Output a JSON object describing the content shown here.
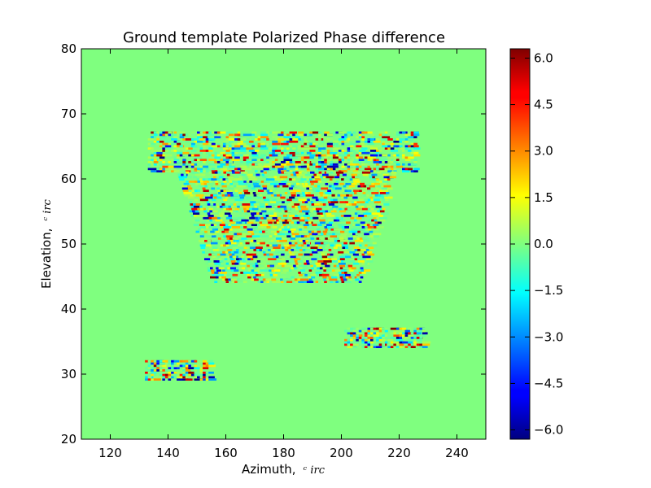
{
  "chart_data": {
    "type": "heatmap",
    "title": "Ground template Polarized Phase difference",
    "xlabel": "Azimuth,",
    "xlabel_unit": "ᶜ irc",
    "ylabel": "Elevation,",
    "ylabel_unit": "ᶜ irc",
    "xlim": [
      110,
      250
    ],
    "ylim": [
      20,
      80
    ],
    "xticks": [
      "120",
      "140",
      "160",
      "180",
      "200",
      "220",
      "240"
    ],
    "yticks": [
      "20",
      "30",
      "40",
      "50",
      "60",
      "70",
      "80"
    ],
    "x_tick_values": [
      120,
      140,
      160,
      180,
      200,
      220,
      240
    ],
    "y_tick_values": [
      20,
      30,
      40,
      50,
      60,
      70,
      80
    ],
    "background_value": 0.0,
    "colormap": "jet",
    "colorbar": {
      "min": -6.3,
      "max": 6.3,
      "ticks": [
        "6.0",
        "4.5",
        "3.0",
        "1.5",
        "0.0",
        "−1.5",
        "−3.0",
        "−4.5",
        "−6.0"
      ],
      "tick_values": [
        6.0,
        4.5,
        3.0,
        1.5,
        0.0,
        -1.5,
        -3.0,
        -4.5,
        -6.0
      ]
    },
    "regions": [
      {
        "name": "upper-band",
        "x": [
          133,
          226
        ],
        "y": [
          61,
          67
        ]
      },
      {
        "name": "middle-trapezoid",
        "x_top": [
          143,
          218
        ],
        "x_bottom": [
          155,
          207
        ],
        "y": [
          44,
          61
        ]
      },
      {
        "name": "right-patch",
        "x": [
          201,
          229
        ],
        "y": [
          34,
          37
        ]
      },
      {
        "name": "left-patch",
        "x": [
          132,
          155
        ],
        "y": [
          29,
          32
        ]
      }
    ]
  }
}
